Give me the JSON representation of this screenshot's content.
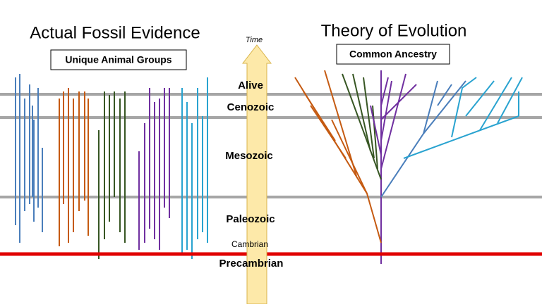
{
  "left": {
    "title": "Actual Fossil Evidence",
    "box": "Unique Animal Groups"
  },
  "right": {
    "title": "Theory of Evolution",
    "box": "Common Ancestry"
  },
  "axis": {
    "label": "Time"
  },
  "eras": {
    "alive": "Alive",
    "cenozoic": "Cenozoic",
    "mesozoic": "Mesozoic",
    "paleozoic": "Paleozoic",
    "cambrian": "Cambrian",
    "precambrian": "Precambrian"
  }
}
